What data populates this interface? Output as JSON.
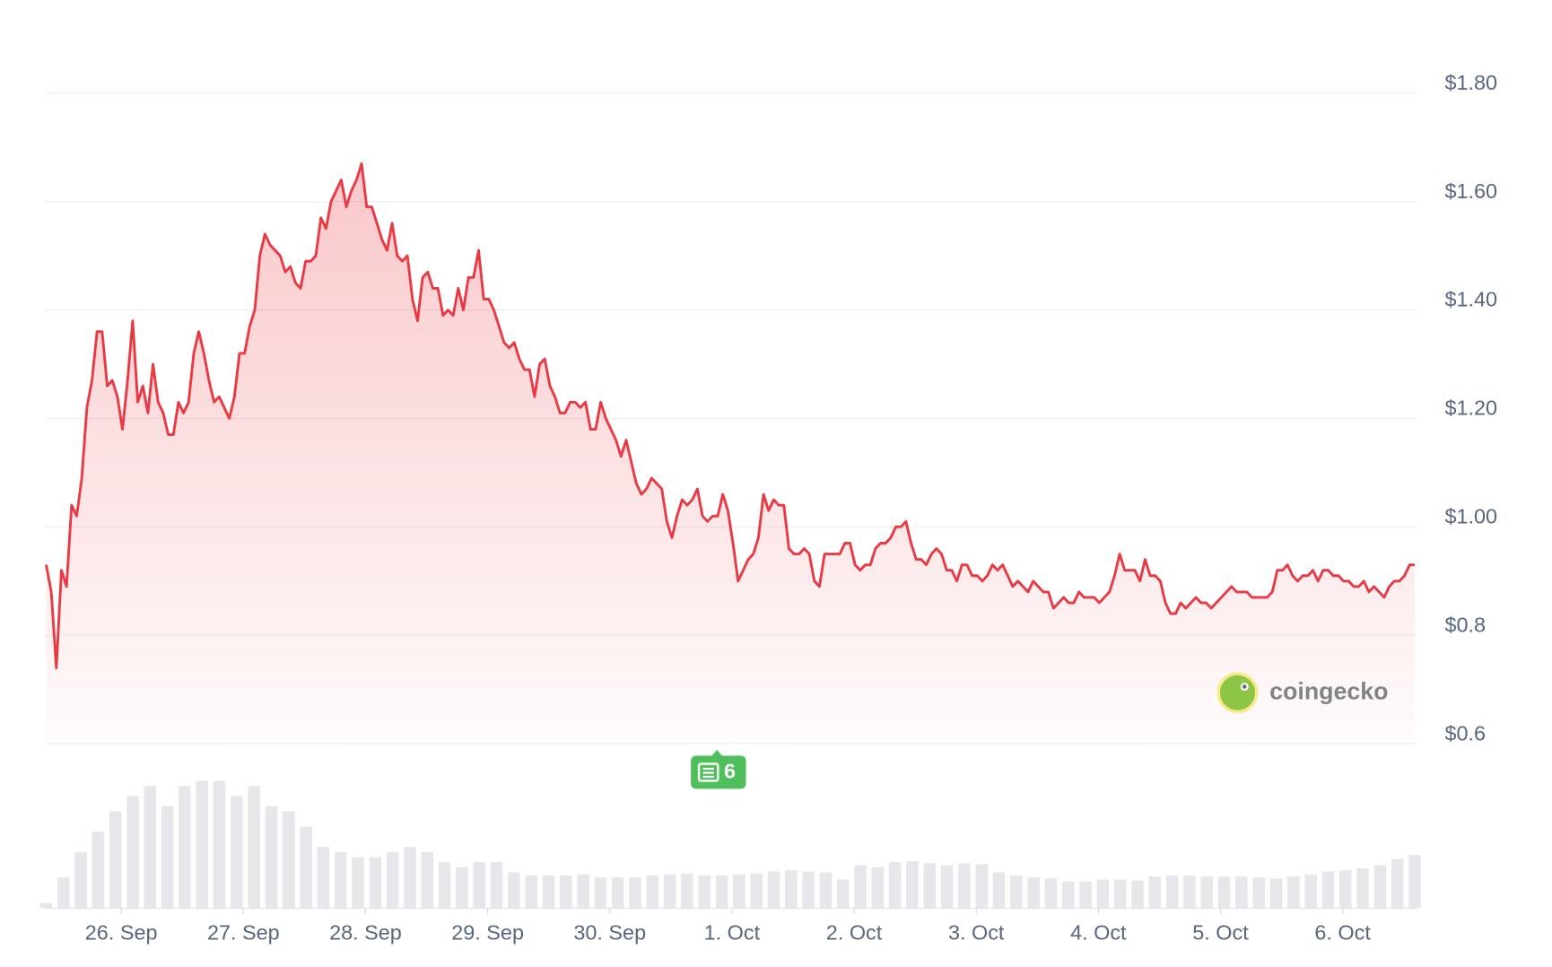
{
  "chart_data": {
    "type": "line",
    "color": "#ea3943",
    "values": [
      0.93,
      0.88,
      0.74,
      0.92,
      0.89,
      1.04,
      1.02,
      1.09,
      1.22,
      1.27,
      1.36,
      1.36,
      1.26,
      1.27,
      1.24,
      1.18,
      1.27,
      1.38,
      1.23,
      1.26,
      1.21,
      1.3,
      1.23,
      1.21,
      1.17,
      1.17,
      1.23,
      1.21,
      1.23,
      1.32,
      1.36,
      1.32,
      1.27,
      1.23,
      1.24,
      1.22,
      1.2,
      1.24,
      1.32,
      1.32,
      1.37,
      1.4,
      1.5,
      1.54,
      1.52,
      1.51,
      1.5,
      1.47,
      1.48,
      1.45,
      1.44,
      1.49,
      1.49,
      1.5,
      1.57,
      1.55,
      1.6,
      1.62,
      1.64,
      1.59,
      1.62,
      1.64,
      1.67,
      1.59,
      1.59,
      1.56,
      1.53,
      1.51,
      1.56,
      1.5,
      1.49,
      1.5,
      1.42,
      1.38,
      1.46,
      1.47,
      1.44,
      1.44,
      1.39,
      1.4,
      1.39,
      1.44,
      1.4,
      1.46,
      1.46,
      1.51,
      1.42,
      1.42,
      1.4,
      1.37,
      1.34,
      1.33,
      1.34,
      1.31,
      1.29,
      1.29,
      1.24,
      1.3,
      1.31,
      1.26,
      1.24,
      1.21,
      1.21,
      1.23,
      1.23,
      1.22,
      1.23,
      1.18,
      1.18,
      1.23,
      1.2,
      1.18,
      1.16,
      1.13,
      1.16,
      1.12,
      1.08,
      1.06,
      1.07,
      1.09,
      1.08,
      1.07,
      1.01,
      0.98,
      1.02,
      1.05,
      1.04,
      1.05,
      1.07,
      1.02,
      1.01,
      1.02,
      1.02,
      1.06,
      1.03,
      0.97,
      0.9,
      0.92,
      0.94,
      0.95,
      0.98,
      1.06,
      1.03,
      1.05,
      1.04,
      1.04,
      0.96,
      0.95,
      0.95,
      0.96,
      0.95,
      0.9,
      0.89,
      0.95,
      0.95,
      0.95,
      0.95,
      0.97,
      0.97,
      0.93,
      0.92,
      0.93,
      0.93,
      0.96,
      0.97,
      0.97,
      0.98,
      1.0,
      1.0,
      1.01,
      0.97,
      0.94,
      0.94,
      0.93,
      0.95,
      0.96,
      0.95,
      0.92,
      0.92,
      0.9,
      0.93,
      0.93,
      0.91,
      0.91,
      0.9,
      0.91,
      0.93,
      0.92,
      0.93,
      0.91,
      0.89,
      0.9,
      0.89,
      0.88,
      0.9,
      0.89,
      0.88,
      0.88,
      0.85,
      0.86,
      0.87,
      0.86,
      0.86,
      0.88,
      0.87,
      0.87,
      0.87,
      0.86,
      0.87,
      0.88,
      0.91,
      0.95,
      0.92,
      0.92,
      0.92,
      0.9,
      0.94,
      0.91,
      0.91,
      0.9,
      0.86,
      0.84,
      0.84,
      0.86,
      0.85,
      0.86,
      0.87,
      0.86,
      0.86,
      0.85,
      0.86,
      0.87,
      0.88,
      0.89,
      0.88,
      0.88,
      0.88,
      0.87,
      0.87,
      0.87,
      0.87,
      0.88,
      0.92,
      0.92,
      0.93,
      0.91,
      0.9,
      0.91,
      0.91,
      0.92,
      0.9,
      0.92,
      0.92,
      0.91,
      0.91,
      0.9,
      0.9,
      0.89,
      0.89,
      0.9,
      0.88,
      0.89,
      0.88,
      0.87,
      0.89,
      0.9,
      0.9,
      0.91,
      0.93,
      0.93
    ],
    "ylim": [
      0.6,
      1.8
    ],
    "yticks": [
      {
        "value": 1.8,
        "label": "$1.80"
      },
      {
        "value": 1.6,
        "label": "$1.60"
      },
      {
        "value": 1.4,
        "label": "$1.40"
      },
      {
        "value": 1.2,
        "label": "$1.20"
      },
      {
        "value": 1.0,
        "label": "$1.00"
      },
      {
        "value": 0.8,
        "label": "$0.8"
      },
      {
        "value": 0.6,
        "label": "$0.6"
      }
    ],
    "grid": true,
    "x_labels": [
      "26. Sep",
      "27. Sep",
      "28. Sep",
      "29. Sep",
      "30. Sep",
      "1. Oct",
      "2. Oct",
      "3. Oct",
      "4. Oct",
      "5. Oct",
      "6. Oct"
    ],
    "volume": {
      "color": "#e6e7eb",
      "values": [
        5,
        30,
        55,
        75,
        95,
        110,
        120,
        100,
        120,
        125,
        125,
        110,
        120,
        100,
        95,
        80,
        60,
        55,
        50,
        50,
        55,
        60,
        55,
        45,
        40,
        45,
        45,
        35,
        32,
        32,
        32,
        33,
        30,
        30,
        30,
        32,
        33,
        34,
        32,
        32,
        33,
        34,
        36,
        37,
        36,
        35,
        28,
        42,
        40,
        45,
        46,
        44,
        42,
        44,
        43,
        35,
        32,
        30,
        29,
        26,
        26,
        28,
        28,
        27,
        31,
        32,
        32,
        31,
        31,
        31,
        30,
        29,
        31,
        33,
        36,
        37,
        39,
        42,
        48,
        52
      ]
    },
    "watermark": "coingecko",
    "news_badge": {
      "count": 6,
      "color": "#4fbf5b"
    }
  }
}
